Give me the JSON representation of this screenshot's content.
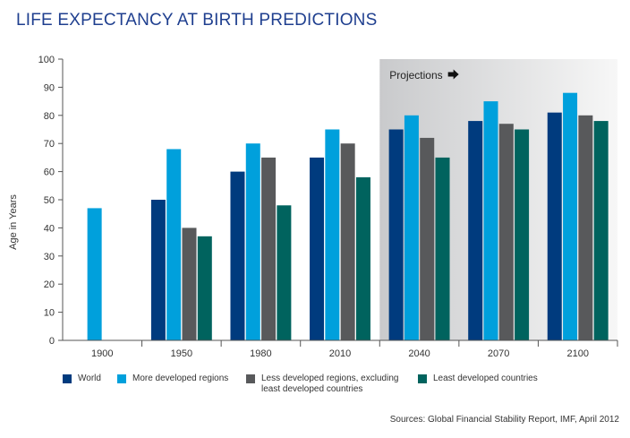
{
  "title": "LIFE EXPECTANCY AT BIRTH PREDICTIONS",
  "source": "Sources: Global Financial Stability Report, IMF, April 2012",
  "chart_data": {
    "type": "bar",
    "title": "LIFE EXPECTANCY AT BIRTH PREDICTIONS",
    "ylabel": "Age in Years",
    "xlabel": "",
    "ylim": [
      0,
      100
    ],
    "yticks": [
      "0",
      "10",
      "20",
      "30",
      "40",
      "50",
      "60",
      "70",
      "80",
      "90",
      "100"
    ],
    "grid": false,
    "legend_position": "bottom",
    "categories": [
      "1900",
      "1950",
      "1980",
      "2010",
      "2040",
      "2070",
      "2100"
    ],
    "series": [
      {
        "name": "World",
        "color": "#003b7e",
        "values": [
          null,
          50,
          60,
          65,
          75,
          78,
          81
        ]
      },
      {
        "name": "More developed regions",
        "color": "#00a0dc",
        "values": [
          47,
          68,
          70,
          75,
          80,
          85,
          88
        ]
      },
      {
        "name": "Less developed regions, excluding least developed countries",
        "color": "#58595b",
        "values": [
          null,
          40,
          65,
          70,
          72,
          77,
          80
        ]
      },
      {
        "name": "Least developed countries",
        "color": "#00635e",
        "values": [
          null,
          37,
          48,
          58,
          65,
          75,
          78
        ]
      }
    ],
    "annotation": {
      "text": "Projections",
      "icon": "arrow-right-icon",
      "from_category": "2040"
    }
  },
  "legend": [
    {
      "line1": "World",
      "line2": ""
    },
    {
      "line1": "More developed regions",
      "line2": ""
    },
    {
      "line1": "Less developed regions, excluding",
      "line2": "least developed countries"
    },
    {
      "line1": "Least developed countries",
      "line2": ""
    }
  ]
}
